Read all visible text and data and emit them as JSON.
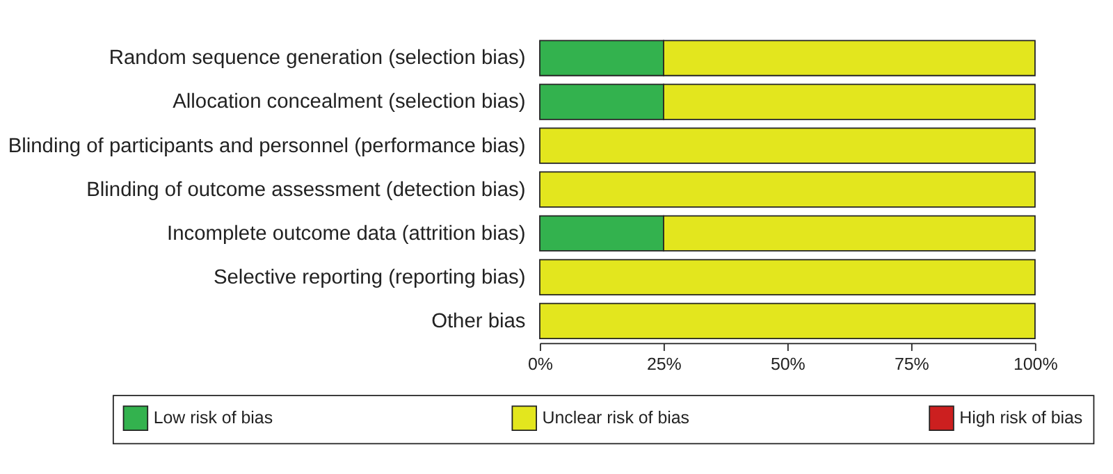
{
  "chart_data": {
    "type": "bar",
    "orientation": "horizontal",
    "stacked": true,
    "categories": [
      "Random sequence generation (selection bias)",
      "Allocation concealment (selection bias)",
      "Blinding of participants and personnel (performance bias)",
      "Blinding of outcome assessment (detection bias)",
      "Incomplete outcome data (attrition bias)",
      "Selective reporting (reporting bias)",
      "Other bias"
    ],
    "series": [
      {
        "name": "Low risk of bias",
        "color": "#33b24e",
        "values": [
          25,
          25,
          0,
          0,
          25,
          0,
          0
        ]
      },
      {
        "name": "Unclear risk of bias",
        "color": "#e3e61e",
        "values": [
          75,
          75,
          100,
          100,
          75,
          100,
          100
        ]
      },
      {
        "name": "High risk of bias",
        "color": "#cc1f1f",
        "values": [
          0,
          0,
          0,
          0,
          0,
          0,
          0
        ]
      }
    ],
    "xlim": [
      0,
      100
    ],
    "xticks": [
      {
        "value": 0,
        "label": "0%"
      },
      {
        "value": 25,
        "label": "25%"
      },
      {
        "value": 50,
        "label": "50%"
      },
      {
        "value": 75,
        "label": "75%"
      },
      {
        "value": 100,
        "label": "100%"
      }
    ],
    "grid": false,
    "legend": "bottom"
  }
}
